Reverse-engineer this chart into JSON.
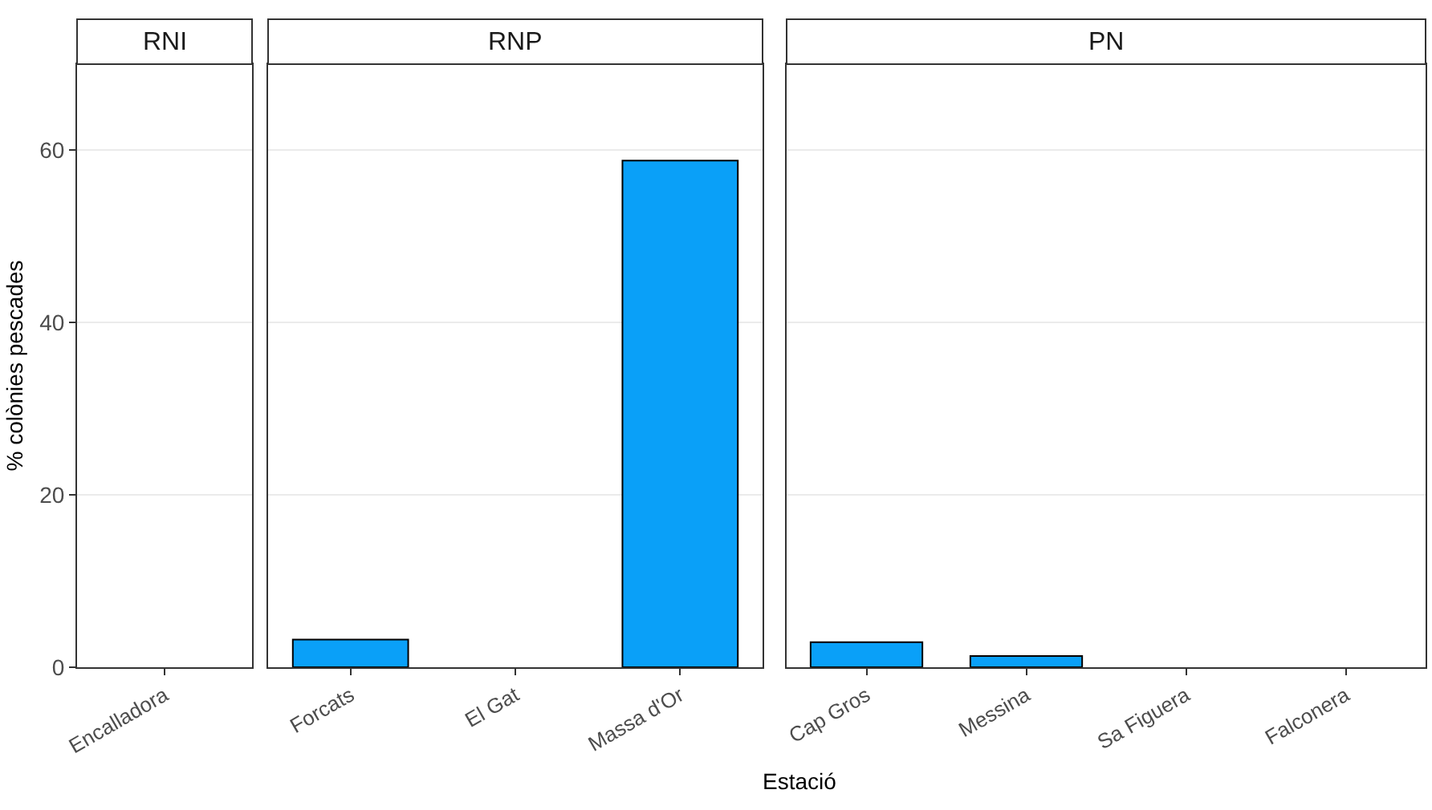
{
  "chart_data": [
    {
      "type": "bar",
      "title": "RNI",
      "ylabel": "% colònies pescades",
      "categories": [
        "Encalladora"
      ],
      "values": [
        0
      ],
      "color": "#0aa0f8",
      "ylim": [
        0,
        70
      ],
      "yticks": [
        0,
        20,
        40,
        60
      ],
      "grid": "y"
    },
    {
      "type": "bar",
      "title": "RNP",
      "categories": [
        "Forcats",
        "El Gat",
        "Massa d'Or"
      ],
      "values": [
        3.2,
        0,
        58.8
      ],
      "color": "#0aa0f8",
      "ylim": [
        0,
        70
      ],
      "yticks": [
        0,
        20,
        40,
        60
      ],
      "grid": "y",
      "tick_labels": "x"
    },
    {
      "type": "bar",
      "title": "PN",
      "xlabel": "Estació",
      "categories": [
        "Cap Gros",
        "Messina",
        "Sa Figuera",
        "Falconera"
      ],
      "values": [
        2.9,
        1.3,
        0,
        0
      ],
      "color": "#0aa0f8",
      "ylim": [
        0,
        70
      ],
      "yticks": [
        0,
        20,
        40,
        60
      ],
      "grid": "y",
      "tick_labels": "x"
    }
  ]
}
